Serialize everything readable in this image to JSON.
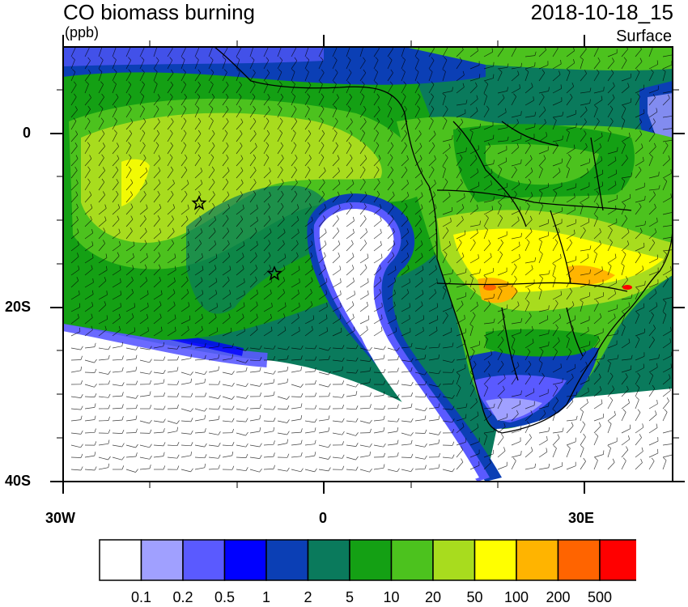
{
  "header": {
    "title": "CO biomass burning",
    "units": "(ppb)",
    "datetime": "2018-10-18_15",
    "level": "Surface"
  },
  "axes": {
    "lat_labels": [
      "0",
      "20S",
      "40S"
    ],
    "lon_labels": [
      "30W",
      "0",
      "30E"
    ]
  },
  "legend": {
    "labels": [
      "0.1",
      "0.2",
      "0.5",
      "1",
      "2",
      "5",
      "10",
      "20",
      "50",
      "100",
      "200",
      "500"
    ],
    "colors": [
      "#ffffff",
      "#a0a0ff",
      "#5a5aff",
      "#0000ff",
      "#0b3fb5",
      "#0a7a5c",
      "#14a014",
      "#4cc21e",
      "#a8dc1e",
      "#ffff00",
      "#ffb400",
      "#ff6400",
      "#ff0000"
    ]
  },
  "markers": {
    "star_icon": "star-icon"
  }
}
